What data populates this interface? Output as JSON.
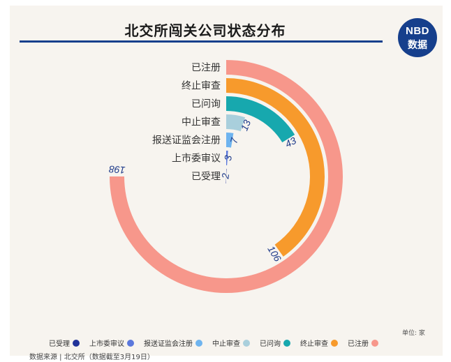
{
  "title": "北交所闯关公司状态分布",
  "logo": {
    "line1": "NBD",
    "line2": "数据"
  },
  "unit": "单位: 家",
  "source": "数据来源 | 北交所（数据截至3月19日）",
  "chart_data": {
    "type": "radial-bar",
    "title": "北交所闯关公司状态分布",
    "unit": "家",
    "max": 198,
    "categories": [
      "已注册",
      "终止审查",
      "已问询",
      "中止审查",
      "报送证监会注册",
      "上市委审议",
      "已受理"
    ],
    "values": [
      198,
      106,
      43,
      13,
      7,
      3,
      2
    ],
    "colors": [
      "#f7978b",
      "#f79a2c",
      "#17a8ae",
      "#a9cfdc",
      "#6fb4ef",
      "#5b78dc",
      "#21339a"
    ],
    "legend": [
      {
        "label": "已受理",
        "color": "#21339a"
      },
      {
        "label": "上市委审议",
        "color": "#5b78dc"
      },
      {
        "label": "报送证监会注册",
        "color": "#6fb4ef"
      },
      {
        "label": "中止审查",
        "color": "#a9cfdc"
      },
      {
        "label": "已问询",
        "color": "#17a8ae"
      },
      {
        "label": "终止审查",
        "color": "#f79a2c"
      },
      {
        "label": "已注册",
        "color": "#f7978b"
      }
    ]
  }
}
